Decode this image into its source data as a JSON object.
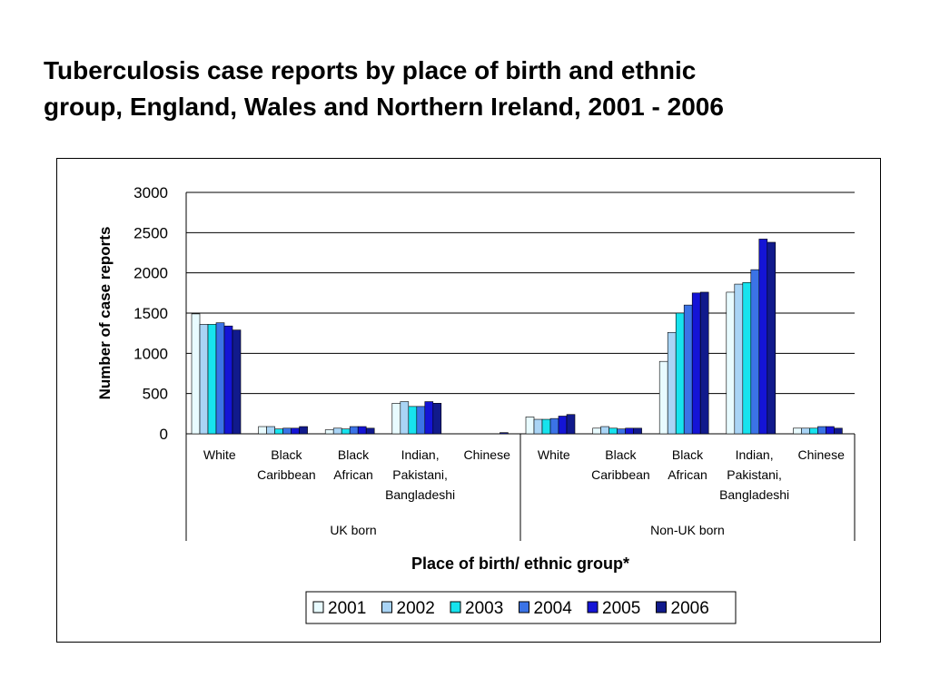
{
  "title_lines": [
    "Tuberculosis case reports by place of birth and ethnic",
    "group, England, Wales and Northern Ireland, 2001 - 2006"
  ],
  "colors": {
    "2001": "#e8fbff",
    "2002": "#a9d4f5",
    "2003": "#17e3ee",
    "2004": "#3b73e6",
    "2005": "#1414d6",
    "2006": "#111a8c"
  },
  "chart_data": {
    "type": "bar",
    "ylabel": "Number of case reports",
    "xlabel": "Place of birth/ ethnic group*",
    "ylim": [
      0,
      3000
    ],
    "yticks": [
      0,
      500,
      1000,
      1500,
      2000,
      2500,
      3000
    ],
    "grid": true,
    "legend_position": "bottom",
    "groups": [
      {
        "name": "UK born",
        "categories": [
          {
            "label": [
              "White"
            ],
            "values": [
              1490,
              1360,
              1360,
              1380,
              1340,
              1290
            ]
          },
          {
            "label": [
              "Black",
              "Caribbean"
            ],
            "values": [
              90,
              90,
              60,
              70,
              70,
              90
            ]
          },
          {
            "label": [
              "Black",
              "African"
            ],
            "values": [
              50,
              70,
              60,
              90,
              90,
              70
            ]
          },
          {
            "label": [
              "Indian,",
              "Pakistani,",
              "Bangladeshi"
            ],
            "values": [
              380,
              400,
              340,
              340,
              400,
              380
            ]
          },
          {
            "label": [
              "Chinese"
            ],
            "values": [
              0,
              0,
              0,
              0,
              0,
              15
            ]
          }
        ]
      },
      {
        "name": "Non-UK born",
        "categories": [
          {
            "label": [
              "White"
            ],
            "values": [
              210,
              180,
              180,
              190,
              220,
              240
            ]
          },
          {
            "label": [
              "Black",
              "Caribbean"
            ],
            "values": [
              70,
              90,
              70,
              60,
              70,
              70
            ]
          },
          {
            "label": [
              "Black",
              "African"
            ],
            "values": [
              900,
              1260,
              1500,
              1600,
              1750,
              1760
            ]
          },
          {
            "label": [
              "Indian,",
              "Pakistani,",
              "Bangladeshi"
            ],
            "values": [
              1760,
              1860,
              1880,
              2040,
              2420,
              2380
            ]
          },
          {
            "label": [
              "Chinese"
            ],
            "values": [
              70,
              70,
              70,
              90,
              90,
              70
            ]
          }
        ]
      }
    ],
    "series": [
      {
        "name": "2001"
      },
      {
        "name": "2002"
      },
      {
        "name": "2003"
      },
      {
        "name": "2004"
      },
      {
        "name": "2005"
      },
      {
        "name": "2006"
      }
    ]
  }
}
